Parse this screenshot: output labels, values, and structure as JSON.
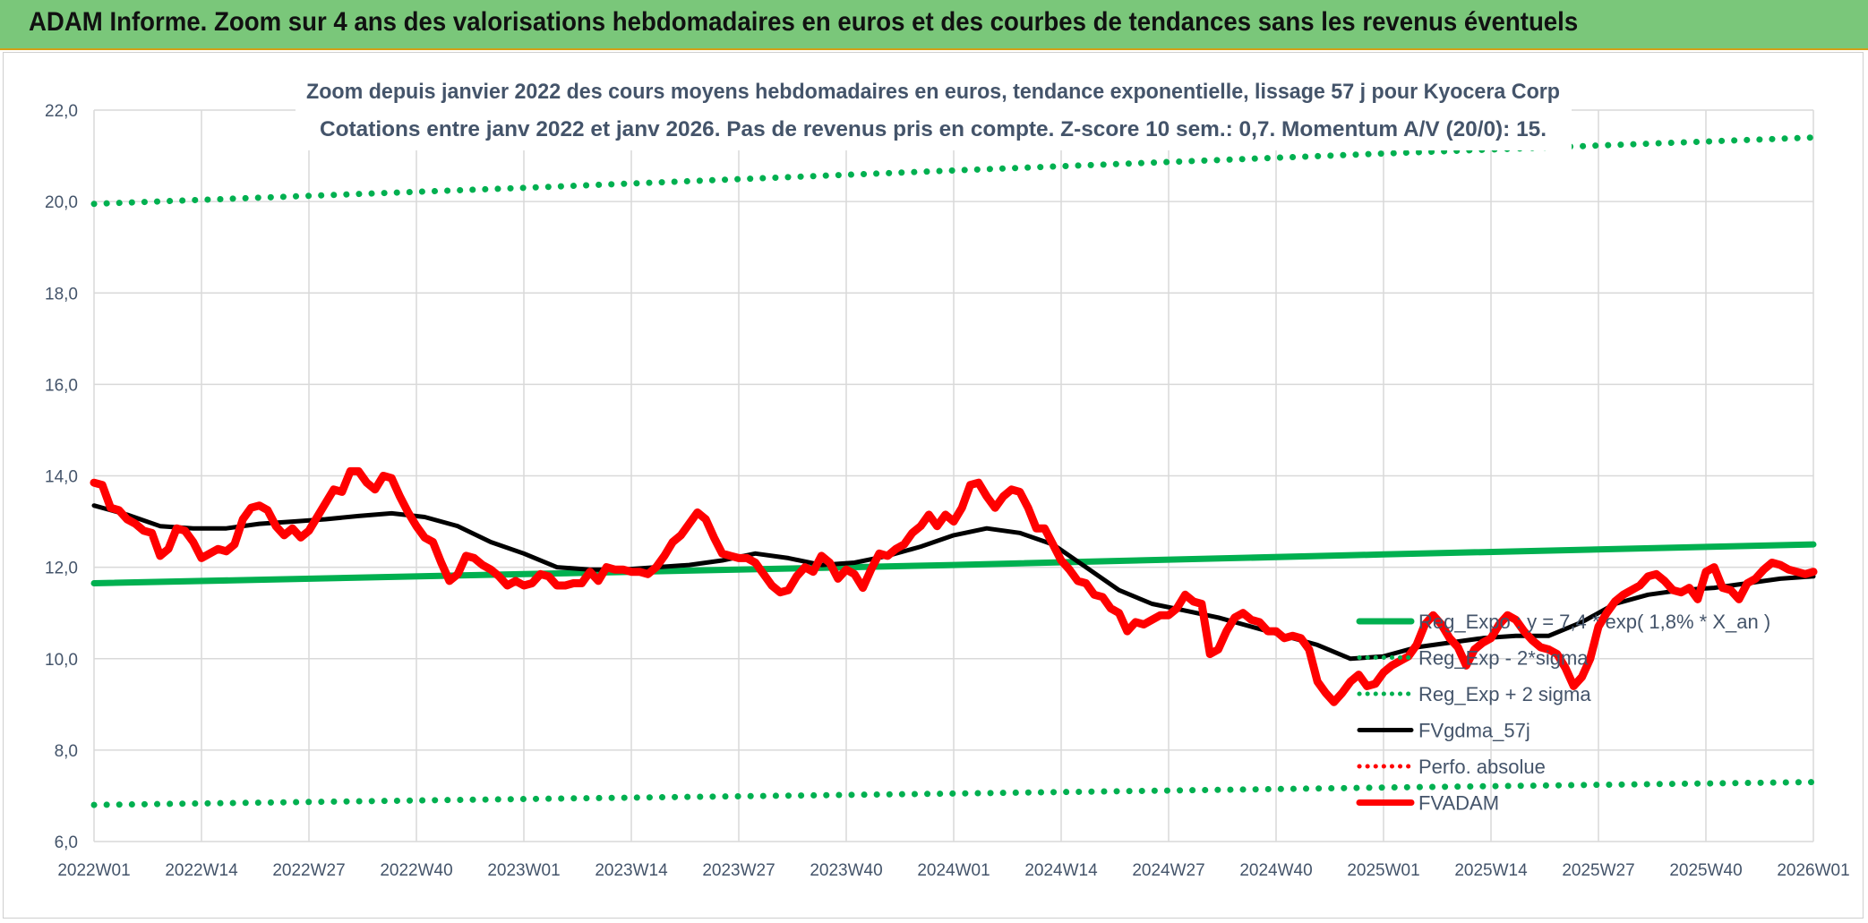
{
  "banner": {
    "title": "ADAM Informe. Zoom sur 4 ans des valorisations hebdomadaires en euros et des courbes de tendances sans les revenus éventuels"
  },
  "chart_data": {
    "type": "line",
    "title": "Zoom depuis janvier 2022 des cours moyens hebdomadaires en euros, tendance exponentielle, lissage 57 j pour Kyocera Corp",
    "subtitle": "Cotations entre janv 2022 et janv 2026. Pas de revenus pris en compte. Z-score 10 sem.: 0,7. Momentum A/V (20/0): 15.",
    "xlabel": "",
    "ylabel": "",
    "ylim": [
      6,
      22
    ],
    "y_ticks": [
      "6,0",
      "8,0",
      "10,0",
      "12,0",
      "14,0",
      "16,0",
      "18,0",
      "20,0",
      "22,0"
    ],
    "x_ticks": [
      "2022W01",
      "2022W14",
      "2022W27",
      "2022W40",
      "2023W01",
      "2023W14",
      "2023W27",
      "2023W40",
      "2024W01",
      "2024W14",
      "2024W27",
      "2024W40",
      "2025W01",
      "2025W14",
      "2025W27",
      "2025W40",
      "2026W01"
    ],
    "x_range_weeks": [
      0,
      208
    ],
    "grid": true,
    "legend_position": "bottom-right",
    "colors": {
      "green": "#00b050",
      "black": "#000000",
      "red": "#ff0000",
      "grid": "#d9d9d9",
      "text": "#44546a"
    },
    "series": [
      {
        "name": "Reg_Expo : y = 7,4 * exp( 1,8% *  X_an )",
        "style": "solid",
        "color": "#00b050",
        "points": [
          [
            0,
            11.65
          ],
          [
            52,
            11.85
          ],
          [
            104,
            12.05
          ],
          [
            156,
            12.28
          ],
          [
            208,
            12.5
          ]
        ]
      },
      {
        "name": "Reg_Exp - 2*sigma",
        "style": "dotted",
        "color": "#00b050",
        "points": [
          [
            0,
            6.8
          ],
          [
            52,
            6.93
          ],
          [
            104,
            7.05
          ],
          [
            156,
            7.18
          ],
          [
            208,
            7.3
          ]
        ]
      },
      {
        "name": "Reg_Exp + 2 sigma",
        "style": "dotted",
        "color": "#00b050",
        "points": [
          [
            0,
            19.95
          ],
          [
            52,
            20.3
          ],
          [
            104,
            20.68
          ],
          [
            156,
            21.05
          ],
          [
            208,
            21.4
          ]
        ]
      },
      {
        "name": "FVgdma_57j",
        "style": "solid",
        "color": "#000000",
        "points": [
          [
            0,
            13.35
          ],
          [
            4,
            13.15
          ],
          [
            8,
            12.9
          ],
          [
            12,
            12.85
          ],
          [
            16,
            12.85
          ],
          [
            20,
            12.95
          ],
          [
            24,
            13.0
          ],
          [
            28,
            13.05
          ],
          [
            32,
            13.12
          ],
          [
            36,
            13.18
          ],
          [
            40,
            13.1
          ],
          [
            44,
            12.9
          ],
          [
            48,
            12.55
          ],
          [
            52,
            12.3
          ],
          [
            56,
            12.0
          ],
          [
            60,
            11.95
          ],
          [
            64,
            11.95
          ],
          [
            68,
            12.0
          ],
          [
            72,
            12.05
          ],
          [
            76,
            12.15
          ],
          [
            80,
            12.3
          ],
          [
            84,
            12.2
          ],
          [
            88,
            12.05
          ],
          [
            92,
            12.1
          ],
          [
            96,
            12.25
          ],
          [
            100,
            12.45
          ],
          [
            104,
            12.7
          ],
          [
            108,
            12.85
          ],
          [
            112,
            12.75
          ],
          [
            116,
            12.5
          ],
          [
            120,
            12.0
          ],
          [
            124,
            11.5
          ],
          [
            128,
            11.2
          ],
          [
            132,
            11.05
          ],
          [
            136,
            10.9
          ],
          [
            140,
            10.7
          ],
          [
            144,
            10.5
          ],
          [
            148,
            10.3
          ],
          [
            152,
            10.0
          ],
          [
            156,
            10.05
          ],
          [
            160,
            10.25
          ],
          [
            164,
            10.35
          ],
          [
            168,
            10.45
          ],
          [
            172,
            10.5
          ],
          [
            176,
            10.5
          ],
          [
            180,
            10.8
          ],
          [
            184,
            11.2
          ],
          [
            188,
            11.4
          ],
          [
            192,
            11.5
          ],
          [
            196,
            11.55
          ],
          [
            200,
            11.65
          ],
          [
            204,
            11.75
          ],
          [
            208,
            11.8
          ]
        ]
      },
      {
        "name": "Perfo. absolue",
        "style": "dotted",
        "color": "#ff0000",
        "points": []
      },
      {
        "name": "FVADAM",
        "style": "solid",
        "color": "#ff0000",
        "points": [
          [
            0,
            13.85
          ],
          [
            1,
            13.8
          ],
          [
            2,
            13.3
          ],
          [
            3,
            13.25
          ],
          [
            4,
            13.05
          ],
          [
            5,
            12.95
          ],
          [
            6,
            12.8
          ],
          [
            7,
            12.75
          ],
          [
            8,
            12.25
          ],
          [
            9,
            12.4
          ],
          [
            10,
            12.85
          ],
          [
            11,
            12.8
          ],
          [
            12,
            12.55
          ],
          [
            13,
            12.2
          ],
          [
            14,
            12.3
          ],
          [
            15,
            12.4
          ],
          [
            16,
            12.35
          ],
          [
            17,
            12.5
          ],
          [
            18,
            13.05
          ],
          [
            19,
            13.3
          ],
          [
            20,
            13.35
          ],
          [
            21,
            13.25
          ],
          [
            22,
            12.9
          ],
          [
            23,
            12.7
          ],
          [
            24,
            12.85
          ],
          [
            25,
            12.65
          ],
          [
            26,
            12.8
          ],
          [
            27,
            13.1
          ],
          [
            28,
            13.4
          ],
          [
            29,
            13.7
          ],
          [
            30,
            13.65
          ],
          [
            31,
            14.1
          ],
          [
            32,
            14.1
          ],
          [
            33,
            13.85
          ],
          [
            34,
            13.7
          ],
          [
            35,
            14.0
          ],
          [
            36,
            13.95
          ],
          [
            37,
            13.55
          ],
          [
            38,
            13.2
          ],
          [
            39,
            12.9
          ],
          [
            40,
            12.65
          ],
          [
            41,
            12.55
          ],
          [
            42,
            12.1
          ],
          [
            43,
            11.7
          ],
          [
            44,
            11.85
          ],
          [
            45,
            12.25
          ],
          [
            46,
            12.2
          ],
          [
            47,
            12.05
          ],
          [
            48,
            11.95
          ],
          [
            49,
            11.8
          ],
          [
            50,
            11.6
          ],
          [
            51,
            11.7
          ],
          [
            52,
            11.6
          ],
          [
            53,
            11.65
          ],
          [
            54,
            11.85
          ],
          [
            55,
            11.8
          ],
          [
            56,
            11.6
          ],
          [
            57,
            11.6
          ],
          [
            58,
            11.65
          ],
          [
            59,
            11.65
          ],
          [
            60,
            11.9
          ],
          [
            61,
            11.7
          ],
          [
            62,
            12.0
          ],
          [
            63,
            11.95
          ],
          [
            64,
            11.95
          ],
          [
            65,
            11.9
          ],
          [
            66,
            11.9
          ],
          [
            67,
            11.85
          ],
          [
            68,
            12.0
          ],
          [
            69,
            12.25
          ],
          [
            70,
            12.55
          ],
          [
            71,
            12.7
          ],
          [
            72,
            12.95
          ],
          [
            73,
            13.2
          ],
          [
            74,
            13.05
          ],
          [
            75,
            12.65
          ],
          [
            76,
            12.3
          ],
          [
            77,
            12.25
          ],
          [
            78,
            12.2
          ],
          [
            79,
            12.2
          ],
          [
            80,
            12.1
          ],
          [
            81,
            11.85
          ],
          [
            82,
            11.6
          ],
          [
            83,
            11.45
          ],
          [
            84,
            11.5
          ],
          [
            85,
            11.8
          ],
          [
            86,
            12.0
          ],
          [
            87,
            11.9
          ],
          [
            88,
            12.25
          ],
          [
            89,
            12.1
          ],
          [
            90,
            11.75
          ],
          [
            91,
            11.95
          ],
          [
            92,
            11.85
          ],
          [
            93,
            11.55
          ],
          [
            94,
            11.95
          ],
          [
            95,
            12.3
          ],
          [
            96,
            12.25
          ],
          [
            97,
            12.4
          ],
          [
            98,
            12.5
          ],
          [
            99,
            12.75
          ],
          [
            100,
            12.9
          ],
          [
            101,
            13.15
          ],
          [
            102,
            12.9
          ],
          [
            103,
            13.15
          ],
          [
            104,
            13.0
          ],
          [
            105,
            13.3
          ],
          [
            106,
            13.8
          ],
          [
            107,
            13.85
          ],
          [
            108,
            13.55
          ],
          [
            109,
            13.3
          ],
          [
            110,
            13.55
          ],
          [
            111,
            13.7
          ],
          [
            112,
            13.65
          ],
          [
            113,
            13.3
          ],
          [
            114,
            12.85
          ],
          [
            115,
            12.85
          ],
          [
            116,
            12.5
          ],
          [
            117,
            12.15
          ],
          [
            118,
            11.95
          ],
          [
            119,
            11.7
          ],
          [
            120,
            11.65
          ],
          [
            121,
            11.4
          ],
          [
            122,
            11.35
          ],
          [
            123,
            11.1
          ],
          [
            124,
            11.0
          ],
          [
            125,
            10.6
          ],
          [
            126,
            10.8
          ],
          [
            127,
            10.75
          ],
          [
            128,
            10.85
          ],
          [
            129,
            10.95
          ],
          [
            130,
            10.95
          ],
          [
            131,
            11.1
          ],
          [
            132,
            11.4
          ],
          [
            133,
            11.25
          ],
          [
            134,
            11.2
          ],
          [
            135,
            10.1
          ],
          [
            136,
            10.2
          ],
          [
            137,
            10.6
          ],
          [
            138,
            10.9
          ],
          [
            139,
            11.0
          ],
          [
            140,
            10.85
          ],
          [
            141,
            10.8
          ],
          [
            142,
            10.6
          ],
          [
            143,
            10.6
          ],
          [
            144,
            10.45
          ],
          [
            145,
            10.5
          ],
          [
            146,
            10.45
          ],
          [
            147,
            10.2
          ],
          [
            148,
            9.5
          ],
          [
            149,
            9.25
          ],
          [
            150,
            9.05
          ],
          [
            151,
            9.25
          ],
          [
            152,
            9.5
          ],
          [
            153,
            9.65
          ],
          [
            154,
            9.4
          ],
          [
            155,
            9.45
          ],
          [
            156,
            9.7
          ],
          [
            157,
            9.85
          ],
          [
            158,
            9.95
          ],
          [
            159,
            10.05
          ],
          [
            160,
            10.3
          ],
          [
            161,
            10.75
          ],
          [
            162,
            10.95
          ],
          [
            163,
            10.75
          ],
          [
            164,
            10.45
          ],
          [
            165,
            10.25
          ],
          [
            166,
            9.85
          ],
          [
            167,
            10.2
          ],
          [
            168,
            10.35
          ],
          [
            169,
            10.45
          ],
          [
            170,
            10.75
          ],
          [
            171,
            10.95
          ],
          [
            172,
            10.85
          ],
          [
            173,
            10.6
          ],
          [
            174,
            10.4
          ],
          [
            175,
            10.25
          ],
          [
            176,
            10.2
          ],
          [
            177,
            10.1
          ],
          [
            178,
            9.8
          ],
          [
            179,
            9.4
          ],
          [
            180,
            9.6
          ],
          [
            181,
            10.0
          ],
          [
            182,
            10.7
          ],
          [
            183,
            11.0
          ],
          [
            184,
            11.25
          ],
          [
            185,
            11.4
          ],
          [
            186,
            11.5
          ],
          [
            187,
            11.6
          ],
          [
            188,
            11.8
          ],
          [
            189,
            11.85
          ],
          [
            190,
            11.7
          ],
          [
            191,
            11.5
          ],
          [
            192,
            11.45
          ],
          [
            193,
            11.55
          ],
          [
            194,
            11.3
          ],
          [
            195,
            11.9
          ],
          [
            196,
            12.0
          ],
          [
            197,
            11.55
          ],
          [
            198,
            11.5
          ],
          [
            199,
            11.3
          ],
          [
            200,
            11.65
          ],
          [
            201,
            11.75
          ],
          [
            202,
            11.95
          ],
          [
            203,
            12.1
          ],
          [
            204,
            12.05
          ],
          [
            205,
            11.95
          ],
          [
            206,
            11.9
          ],
          [
            207,
            11.85
          ],
          [
            208,
            11.9
          ]
        ]
      }
    ]
  }
}
